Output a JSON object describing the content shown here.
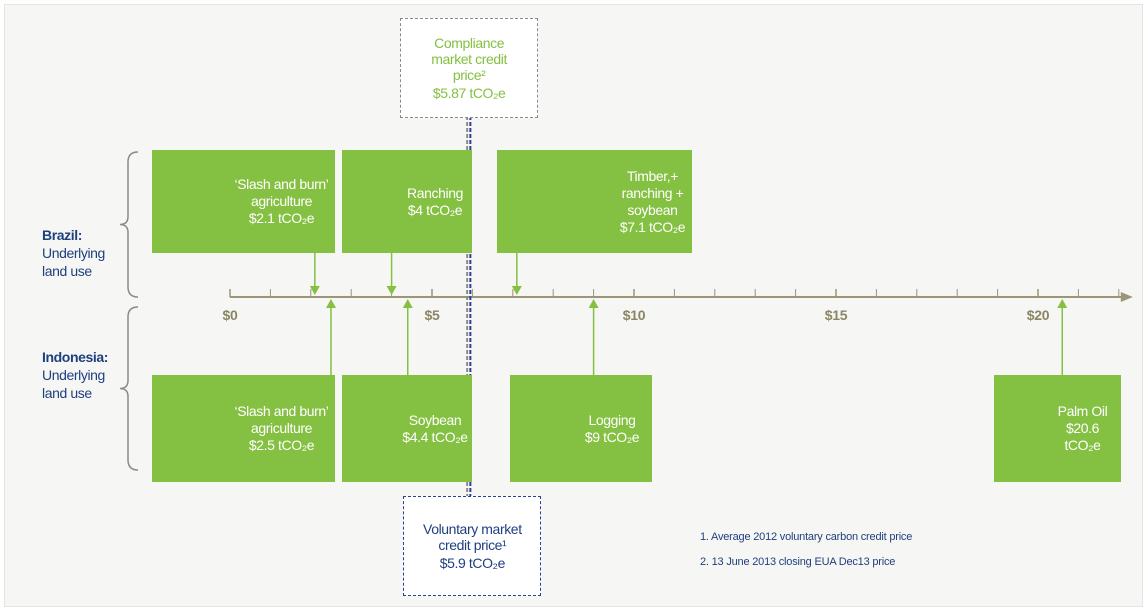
{
  "axis": {
    "min": 0,
    "max": 22,
    "ticks": [
      {
        "value": 0,
        "label": "$0"
      },
      {
        "value": 5,
        "label": "$5"
      },
      {
        "value": 10,
        "label": "$10"
      },
      {
        "value": 15,
        "label": "$15"
      },
      {
        "value": 20,
        "label": "$20"
      }
    ],
    "minor_ticks": [
      1,
      2,
      3,
      4,
      6,
      7,
      8,
      9,
      11,
      12,
      13,
      14,
      16,
      17,
      18,
      19,
      21,
      22
    ]
  },
  "brazil": {
    "label": "Brazil:",
    "sublabel": "Underlying land use",
    "items": [
      {
        "name": "‘Slash and burn’ agriculture",
        "price": 2.1,
        "price_label": "$2.1 tCO₂e"
      },
      {
        "name": "Ranching",
        "price": 4,
        "price_label": "$4 tCO₂e"
      },
      {
        "name": "Timber,+ ranching + soybean",
        "price": 7.1,
        "price_label": "$7.1 tCO₂e"
      }
    ]
  },
  "indonesia": {
    "label": "Indonesia:",
    "sublabel": "Underlying land use",
    "items": [
      {
        "name": "‘Slash and burn’ agriculture",
        "price": 2.5,
        "price_label": "$2.5 tCO₂e"
      },
      {
        "name": "Soybean",
        "price": 4.4,
        "price_label": "$4.4 tCO₂e"
      },
      {
        "name": "Logging",
        "price": 9,
        "price_label": "$9 tCO₂e"
      },
      {
        "name": "Palm Oil",
        "price": 20.6,
        "price_label": "$20.6 tCO₂e"
      }
    ]
  },
  "compliance": {
    "title": "Compliance market credit price²",
    "price": 5.87,
    "price_label": "$5.87 tCO₂e"
  },
  "voluntary": {
    "title": "Voluntary market credit price¹",
    "price": 5.9,
    "price_label": "$5.9 tCO₂e"
  },
  "footnotes": [
    "1.  Average 2012 voluntary carbon credit price",
    "2.  13 June 2013 closing EUA Dec13 price"
  ]
}
